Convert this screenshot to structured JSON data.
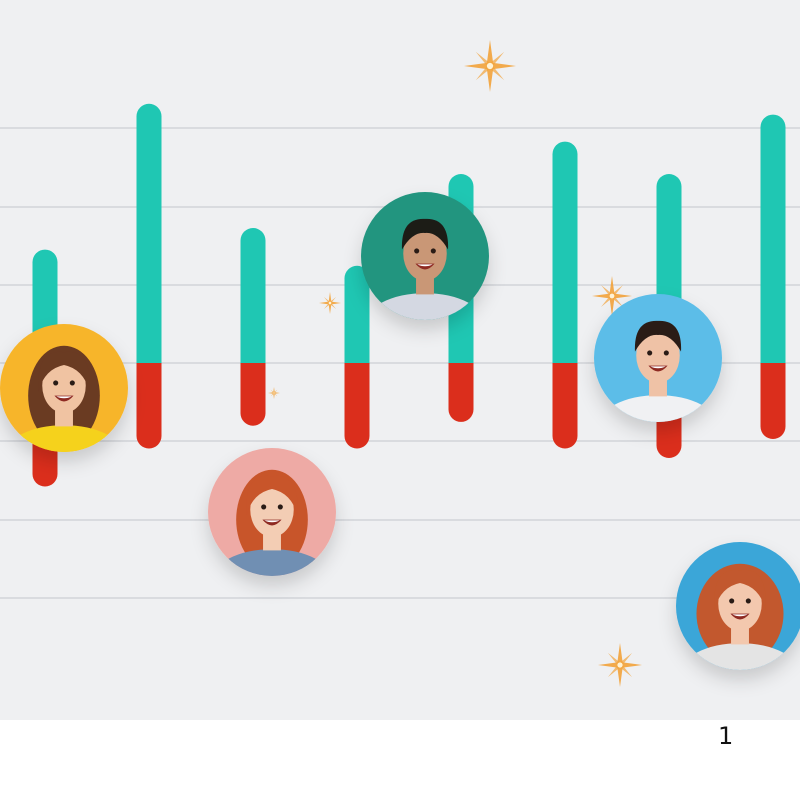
{
  "page_number": "1",
  "colors": {
    "background": "#eff0f2",
    "gridline": "#d9dbdf",
    "upper_segment": "#1fc7b3",
    "lower_segment": "#db2e1c",
    "sparkle": "#f2a23a"
  },
  "bars": [
    {
      "up": 0.42,
      "down": 0.65
    },
    {
      "up": 0.96,
      "down": 0.45
    },
    {
      "up": 0.5,
      "down": 0.33
    },
    {
      "up": 0.36,
      "down": 0.45
    },
    {
      "up": 0.7,
      "down": 0.31
    },
    {
      "up": 0.82,
      "down": 0.45
    },
    {
      "up": 0.7,
      "down": 0.5
    },
    {
      "up": 0.92,
      "down": 0.4
    }
  ],
  "avatars": [
    {
      "name": "avatar-woman-yellow-scarf",
      "ring": "#f7b52b",
      "skin": "#f0c3a2",
      "hair": "#6b3a22",
      "shirt": "#f5d21e"
    },
    {
      "name": "avatar-woman-red-hair-denim",
      "ring": "#eeaaa5",
      "skin": "#f3cdb4",
      "hair": "#c8542a",
      "shirt": "#6f8fb3"
    },
    {
      "name": "avatar-man-checked-shirt",
      "ring": "#23957f",
      "skin": "#c99776",
      "hair": "#1d1a19",
      "shirt": "#d4d8e2"
    },
    {
      "name": "avatar-man-blue-background",
      "ring": "#5bbde8",
      "skin": "#efc2a6",
      "hair": "#2a1c17",
      "shirt": "#f0f1f3"
    },
    {
      "name": "avatar-woman-curly-red-hair",
      "ring": "#3aa6d8",
      "skin": "#f3c8ae",
      "hair": "#c2592d",
      "shirt": "#e4e4e4"
    }
  ]
}
